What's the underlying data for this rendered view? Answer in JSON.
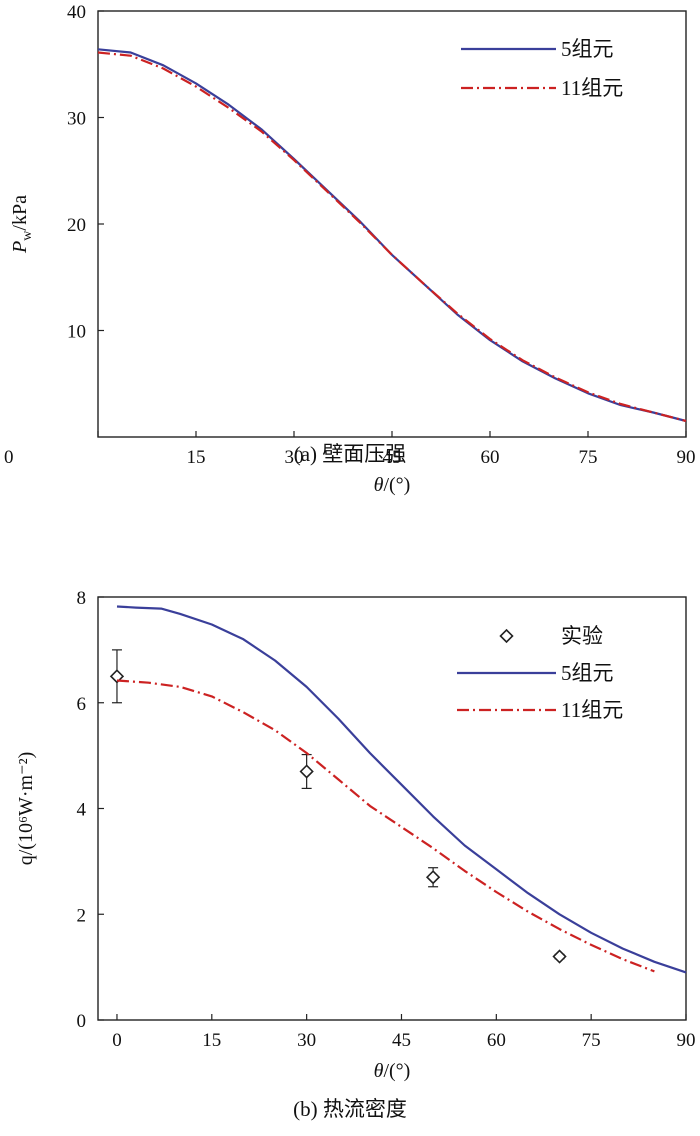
{
  "chart_data": [
    {
      "type": "line",
      "caption": "(a) 壁面压强",
      "xlabel_var": "θ",
      "xlabel_unit": "/(°)",
      "ylabel_var": "P",
      "ylabel_sub": "w",
      "ylabel_unit": "/kPa",
      "xlim": [
        0,
        90
      ],
      "ylim": [
        0,
        40
      ],
      "xticks": [
        0,
        15,
        30,
        45,
        60,
        75,
        90
      ],
      "yticks": [
        10,
        20,
        30,
        40
      ],
      "ytick_labels": [
        "10",
        "20",
        "30",
        "40"
      ],
      "legend_position": "top-right",
      "series": [
        {
          "name": "5组元",
          "color": "#3a3f9a",
          "dash": "",
          "x": [
            0,
            5,
            10,
            15,
            20,
            25,
            30,
            35,
            40,
            45,
            50,
            55,
            60,
            65,
            70,
            75,
            80,
            85,
            90
          ],
          "y": [
            36.4,
            36.1,
            34.9,
            33.2,
            31.2,
            28.9,
            26.1,
            23.2,
            20.3,
            17.1,
            14.3,
            11.5,
            9.1,
            7.1,
            5.5,
            4.1,
            3.0,
            2.3,
            1.5
          ]
        },
        {
          "name": "11组元",
          "color": "#cc2222",
          "dash": "12 4 2 4",
          "x": [
            0,
            5,
            10,
            15,
            20,
            25,
            30,
            35,
            40,
            45,
            50,
            55,
            60,
            65,
            70,
            75,
            80,
            85,
            90
          ],
          "y": [
            36.1,
            35.8,
            34.6,
            32.9,
            30.9,
            28.7,
            26.0,
            23.1,
            20.2,
            17.1,
            14.3,
            11.6,
            9.2,
            7.2,
            5.6,
            4.2,
            3.1,
            2.3,
            1.5
          ]
        }
      ]
    },
    {
      "type": "line",
      "caption": "(b) 热流密度",
      "xlabel_var": "θ",
      "xlabel_unit": "/(°)",
      "ylabel_text": "q/(10⁶W·m⁻²)",
      "xlim": [
        -3,
        90
      ],
      "ylim": [
        0,
        8
      ],
      "xticks": [
        0,
        15,
        30,
        45,
        60,
        75,
        90
      ],
      "yticks": [
        0,
        2,
        4,
        6,
        8
      ],
      "ytick_labels": [
        "0",
        "2",
        "4",
        "6",
        "8"
      ],
      "legend_position": "top-right",
      "series": [
        {
          "name": "实验",
          "type": "scatter",
          "marker": "diamond",
          "x": [
            0,
            30,
            50,
            70
          ],
          "y": [
            6.5,
            4.7,
            2.7,
            1.2
          ],
          "err": [
            0.5,
            0.32,
            0.18,
            0.04
          ]
        },
        {
          "name": "5组元",
          "color": "#3a3f9a",
          "dash": "",
          "x": [
            0,
            3,
            7,
            10,
            15,
            20,
            25,
            30,
            35,
            40,
            45,
            50,
            55,
            60,
            65,
            70,
            75,
            80,
            85,
            90
          ],
          "y": [
            7.82,
            7.8,
            7.78,
            7.68,
            7.48,
            7.2,
            6.8,
            6.3,
            5.7,
            5.05,
            4.45,
            3.85,
            3.3,
            2.85,
            2.4,
            2.0,
            1.65,
            1.35,
            1.1,
            0.9
          ]
        },
        {
          "name": "11组元",
          "color": "#cc2222",
          "dash": "12 4 2 4",
          "x": [
            0,
            5,
            10,
            15,
            20,
            25,
            30,
            35,
            40,
            45,
            50,
            55,
            60,
            65,
            70,
            75,
            80,
            85
          ],
          "y": [
            6.42,
            6.38,
            6.3,
            6.12,
            5.82,
            5.48,
            5.05,
            4.55,
            4.05,
            3.65,
            3.25,
            2.82,
            2.42,
            2.05,
            1.72,
            1.42,
            1.15,
            0.92
          ]
        }
      ]
    }
  ]
}
